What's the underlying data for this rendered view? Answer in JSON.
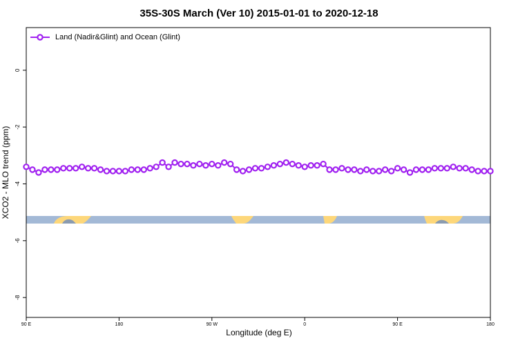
{
  "chart_data": {
    "type": "line",
    "title": "35S-30S March (Ver 10)   2015-01-01 to 2020-12-18",
    "x_label": "Longitude (deg E)",
    "y_label": "XCO2 - MLO trend (ppm)",
    "xlim": [
      90,
      540
    ],
    "xticks": [
      {
        "value": 90,
        "label": "90 E"
      },
      180,
      {
        "value": 270,
        "label": "90 W"
      },
      {
        "value": 360,
        "label": "0"
      },
      {
        "value": 450,
        "label": "90 E"
      },
      {
        "value": 540,
        "label": "180"
      }
    ],
    "ylim": [
      -8.7,
      1.5
    ],
    "yticks": [
      0,
      -2,
      -4,
      -6,
      -8
    ],
    "legend": "top-left",
    "x": [
      90,
      96,
      102,
      108,
      114,
      120,
      126,
      132,
      138,
      144,
      150,
      156,
      162,
      168,
      174,
      180,
      186,
      192,
      198,
      204,
      210,
      216,
      222,
      228,
      234,
      240,
      246,
      252,
      258,
      264,
      270,
      276,
      282,
      288,
      294,
      300,
      306,
      312,
      318,
      324,
      330,
      336,
      342,
      348,
      354,
      360,
      366,
      372,
      378,
      384,
      390,
      396,
      402,
      408,
      414,
      420,
      426,
      432,
      438,
      444,
      450,
      456,
      462,
      468,
      474,
      480,
      486,
      492,
      498,
      504,
      510,
      516,
      522,
      528,
      534,
      540
    ],
    "series": [
      {
        "name": "Land (Nadir&Glint) and Ocean (Glint)",
        "color": "#a020f0",
        "values": [
          -3.4,
          -3.5,
          -3.6,
          -3.5,
          -3.5,
          -3.5,
          -3.45,
          -3.45,
          -3.45,
          -3.4,
          -3.45,
          -3.45,
          -3.5,
          -3.55,
          -3.55,
          -3.55,
          -3.55,
          -3.5,
          -3.5,
          -3.5,
          -3.45,
          -3.4,
          -3.25,
          -3.4,
          -3.25,
          -3.3,
          -3.3,
          -3.35,
          -3.3,
          -3.35,
          -3.3,
          -3.35,
          -3.25,
          -3.3,
          -3.5,
          -3.55,
          -3.5,
          -3.45,
          -3.45,
          -3.4,
          -3.35,
          -3.3,
          -3.25,
          -3.3,
          -3.35,
          -3.4,
          -3.35,
          -3.35,
          -3.3,
          -3.5,
          -3.5,
          -3.45,
          -3.5,
          -3.5,
          -3.55,
          -3.5,
          -3.55,
          -3.55,
          -3.5,
          -3.55,
          -3.45,
          -3.5,
          -3.6,
          -3.5,
          -3.5,
          -3.5,
          -3.45,
          -3.45,
          -3.45,
          -3.4,
          -3.45,
          -3.45,
          -3.5,
          -3.55,
          -3.55,
          -3.55
        ]
      }
    ]
  }
}
